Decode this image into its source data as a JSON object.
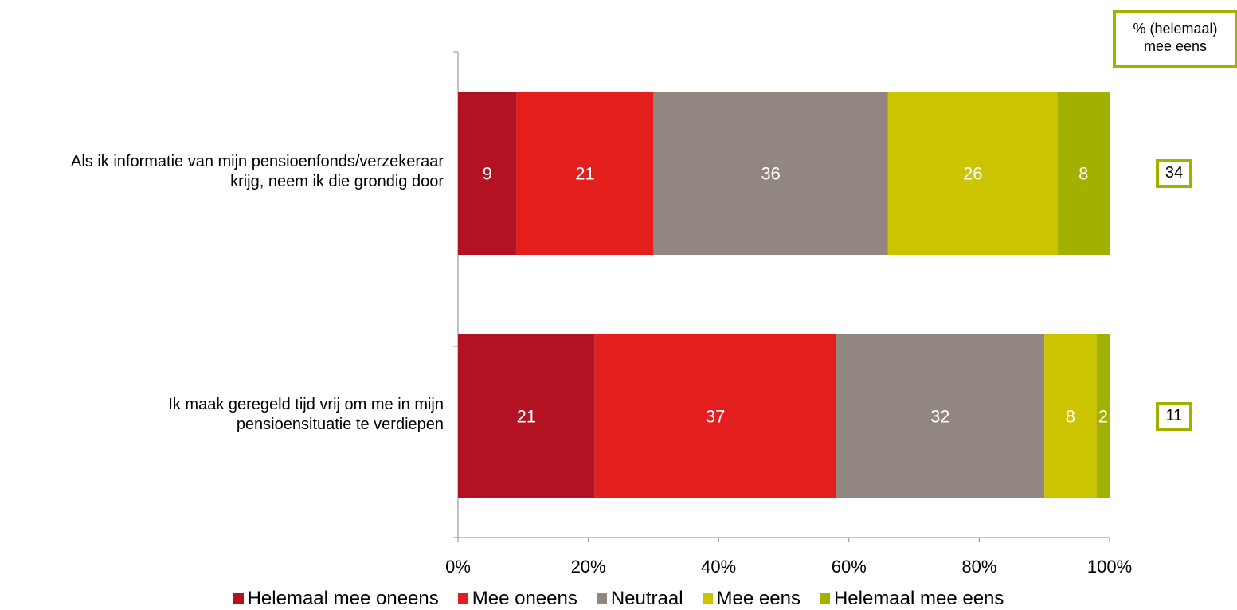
{
  "chart_data": {
    "type": "bar",
    "orientation": "horizontal",
    "stacked": "percent",
    "categories": [
      "Als ik informatie van mijn pensioenfonds/verzekeraar krijg, neem ik die grondig door",
      "Ik maak geregeld tijd vrij om me in mijn pensioensituatie te verdiepen"
    ],
    "category_lines": [
      [
        "Als ik informatie van mijn pensioenfonds/verzekeraar",
        "krijg, neem ik die grondig door"
      ],
      [
        "Ik maak geregeld tijd vrij om me in mijn",
        "pensioensituatie te verdiepen"
      ]
    ],
    "series": [
      {
        "name": "Helemaal mee oneens",
        "color": "#b31222",
        "values": [
          9,
          21
        ]
      },
      {
        "name": "Mee oneens",
        "color": "#e31e1c",
        "values": [
          21,
          37
        ]
      },
      {
        "name": "Neutraal",
        "color": "#928680",
        "values": [
          36,
          32
        ]
      },
      {
        "name": "Mee eens",
        "color": "#cdc400",
        "values": [
          26,
          8
        ]
      },
      {
        "name": "Helemaal mee eens",
        "color": "#a2b000",
        "values": [
          8,
          2
        ]
      }
    ],
    "x_ticks": [
      "0%",
      "20%",
      "40%",
      "60%",
      "80%",
      "100%"
    ],
    "xlim": [
      0,
      100
    ],
    "grid": false,
    "legend_position": "bottom",
    "totals_header": [
      "% (helemaal)",
      "mee eens"
    ],
    "totals": [
      34,
      11
    ],
    "totals_color": "#a2b000"
  }
}
